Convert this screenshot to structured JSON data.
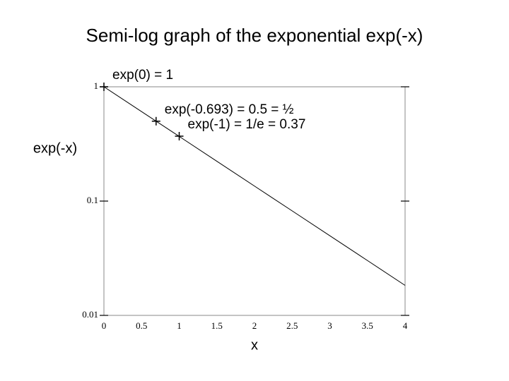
{
  "chart_data": {
    "type": "line",
    "title": "Semi-log graph of the exponential exp(-x)",
    "x_label": "x",
    "y_label": "exp(-x)",
    "yscale": "log",
    "x": [
      0,
      0.5,
      1,
      1.5,
      2,
      2.5,
      3,
      3.5,
      4
    ],
    "series": [
      {
        "color": "#000000",
        "values": [
          1,
          0.6065,
          0.3679,
          0.2231,
          0.1353,
          0.0821,
          0.0498,
          0.0302,
          0.0183
        ]
      }
    ],
    "annotations": [
      {
        "text": "exp(0) = 1",
        "x": 0,
        "y": 1
      },
      {
        "text": "exp(-0.693) = 0.5 = ½",
        "x": 0.693,
        "y": 0.5
      },
      {
        "text": "exp(-1) = 1/e = 0.37",
        "x": 1,
        "y": 0.37
      }
    ],
    "xlim": [
      0,
      4
    ],
    "ylim": [
      0.01,
      1
    ],
    "xticks": [
      0,
      0.5,
      1,
      1.5,
      2,
      2.5,
      3,
      3.5,
      4
    ],
    "yticks": [
      1,
      0.1,
      0.01
    ]
  }
}
